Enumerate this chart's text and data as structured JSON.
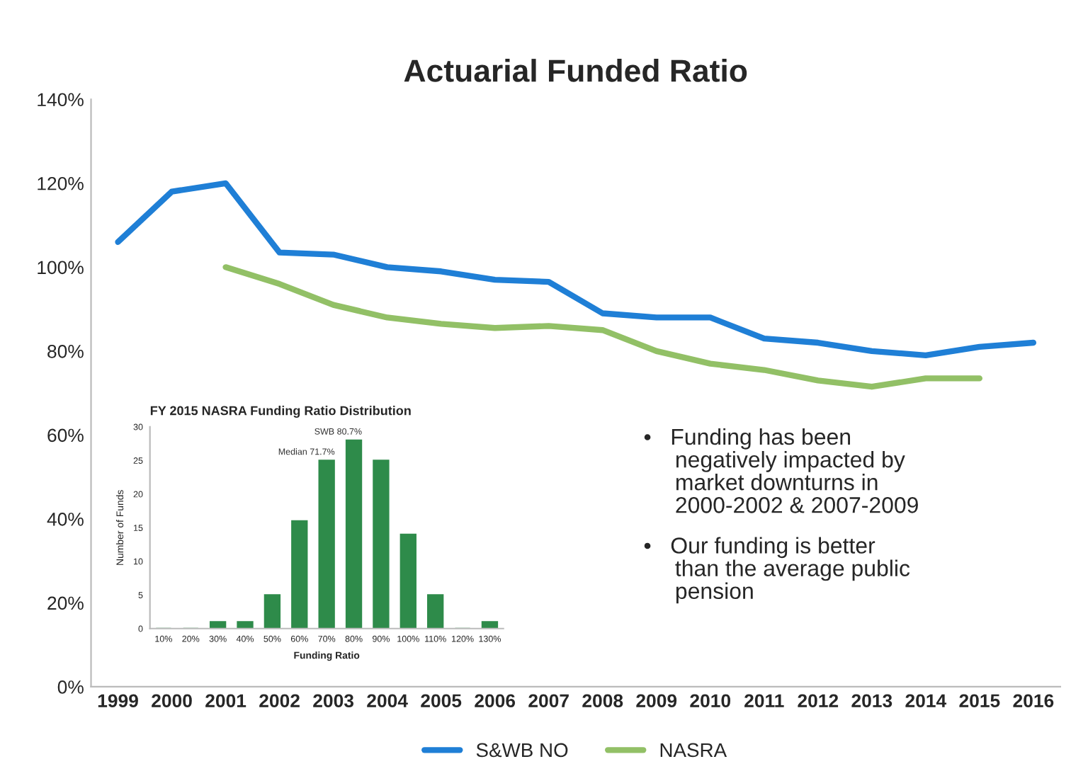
{
  "chart_data": [
    {
      "type": "line",
      "title": "Actuarial Funded Ratio",
      "categories": [
        "1999",
        "2000",
        "2001",
        "2002",
        "2003",
        "2004",
        "2005",
        "2006",
        "2007",
        "2008",
        "2009",
        "2010",
        "2011",
        "2012",
        "2013",
        "2014",
        "2015",
        "2016"
      ],
      "series": [
        {
          "name": "S&WB NO",
          "color": "#1f7fd6",
          "values": [
            106,
            118,
            120,
            103.5,
            103,
            100,
            99,
            97,
            96.5,
            89,
            88,
            88,
            83,
            82,
            80,
            79,
            81,
            82
          ]
        },
        {
          "name": "NASRA",
          "color": "#92c066",
          "values": [
            null,
            null,
            100,
            96,
            91,
            88,
            86.5,
            85.5,
            86,
            85,
            80,
            77,
            75.5,
            73,
            71.5,
            73.5,
            73.5,
            null
          ]
        }
      ],
      "ylim": [
        0,
        140
      ],
      "yticks": [
        {
          "value": 0,
          "label": "0%"
        },
        {
          "value": 20,
          "label": "20%"
        },
        {
          "value": 40,
          "label": "40%"
        },
        {
          "value": 60,
          "label": "60%"
        },
        {
          "value": 80,
          "label": "80%"
        },
        {
          "value": 100,
          "label": "100%"
        },
        {
          "value": 120,
          "label": "120%"
        },
        {
          "value": 140,
          "label": "140%"
        }
      ],
      "legend": "bottom",
      "annotations": [
        "•   Funding has been\n     negatively impacted by\n     market downturns in\n     2000-2002 & 2007-2009",
        "•   Our funding is better\n     than the average public\n     pension"
      ]
    },
    {
      "type": "bar",
      "title": "FY 2015 NASRA Funding Ratio Distribution",
      "categories": [
        "10%",
        "20%",
        "30%",
        "40%",
        "50%",
        "60%",
        "70%",
        "80%",
        "90%",
        "100%",
        "110%",
        "120%",
        "130%"
      ],
      "series": [
        {
          "color": "#2e8b4a",
          "values": [
            0,
            0,
            1,
            1,
            5,
            16,
            25,
            28,
            25,
            14,
            5,
            0,
            1
          ]
        }
      ],
      "xlabel": "Funding Ratio",
      "ylabel": "Number of Funds",
      "ylim": [
        0,
        30
      ],
      "yticks": [
        0,
        5,
        10,
        15,
        20,
        25,
        30
      ],
      "annotations": [
        {
          "text": "Median 71.7%",
          "x": "70%",
          "y": 25
        },
        {
          "text": "SWB 80.7%",
          "x": "80%",
          "y": 28
        }
      ]
    }
  ]
}
